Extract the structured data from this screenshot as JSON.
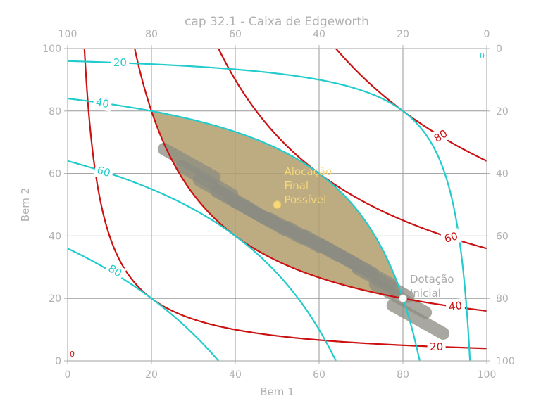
{
  "chart_data": {
    "type": "line",
    "title": "cap 32.1 - Caixa de Edgeworth",
    "xlabel": "Bem 1",
    "ylabel": "Bem 2",
    "xlim": [
      0,
      100
    ],
    "ylim": [
      0,
      100
    ],
    "grid": true,
    "x_ticks": [
      "0",
      "20",
      "40",
      "60",
      "80",
      "100"
    ],
    "y_ticks": [
      "0",
      "20",
      "40",
      "60",
      "80",
      "100"
    ],
    "top_ticks": [
      "100",
      "80",
      "60",
      "40",
      "20",
      "0"
    ],
    "right_ticks": [
      "100",
      "80",
      "60",
      "40",
      "20",
      "0"
    ],
    "origin_labels": {
      "bottom_left": "0",
      "top_right": "0"
    },
    "colors": {
      "consumer_a": "#cc1111",
      "consumer_b": "#22cccc",
      "lens_fill": "#b29d6c",
      "lens_edge": "#66dd66",
      "axes": "#b0b0b0",
      "grid": "#999999",
      "final_point": "#f6d77a",
      "endowment_point": "#ffffff"
    },
    "series": [
      {
        "name": "",
        "group": "consumer_a",
        "level": 20,
        "label": "20",
        "function": "x*y = 400",
        "x_range": [
          4,
          100
        ]
      },
      {
        "name": "",
        "group": "consumer_a",
        "level": 40,
        "label": "40",
        "function": "x*y = 1600",
        "x_range": [
          16,
          100
        ]
      },
      {
        "name": "",
        "group": "consumer_a",
        "level": 60,
        "label": "60",
        "function": "x*y = 3600",
        "x_range": [
          36,
          100
        ]
      },
      {
        "name": "",
        "group": "consumer_a",
        "level": 80,
        "label": "80",
        "function": "x*y = 6400",
        "x_range": [
          64,
          100
        ]
      },
      {
        "name": "",
        "group": "consumer_b",
        "level": 20,
        "label": "20",
        "function": "(100-x)*(100-y) = 400",
        "x_range": [
          0,
          96
        ]
      },
      {
        "name": "",
        "group": "consumer_b",
        "level": 40,
        "label": "40",
        "function": "(100-x)*(100-y) = 1600",
        "x_range": [
          0,
          84
        ]
      },
      {
        "name": "",
        "group": "consumer_b",
        "level": 60,
        "label": "60",
        "function": "(100-x)*(100-y) = 3600",
        "x_range": [
          0,
          64
        ]
      },
      {
        "name": "",
        "group": "consumer_b",
        "level": 80,
        "label": "80",
        "function": "(100-x)*(100-y) = 6400",
        "x_range": [
          0,
          36
        ]
      }
    ],
    "contour_labels": [
      {
        "group": "consumer_b",
        "text": "20",
        "x": 12.5,
        "y": 95.5,
        "angle": 0
      },
      {
        "group": "consumer_b",
        "text": "40",
        "x": 8.3,
        "y": 82.5,
        "angle": 10
      },
      {
        "group": "consumer_b",
        "text": "60",
        "x": 8.6,
        "y": 60.6,
        "angle": 16
      },
      {
        "group": "consumer_b",
        "text": "80",
        "x": 11.3,
        "y": 28.8,
        "angle": 32
      },
      {
        "group": "consumer_a",
        "text": "20",
        "x": 88.0,
        "y": 4.5,
        "angle": 0
      },
      {
        "group": "consumer_a",
        "text": "40",
        "x": 92.5,
        "y": 17.5,
        "angle": -8
      },
      {
        "group": "consumer_a",
        "text": "60",
        "x": 91.5,
        "y": 39.5,
        "angle": -16
      },
      {
        "group": "consumer_a",
        "text": "80",
        "x": 89.0,
        "y": 72.0,
        "angle": -32
      }
    ],
    "region": {
      "name": "",
      "between": [
        "consumer_a level 40",
        "consumer_b level 40"
      ],
      "x_range": [
        20,
        80
      ]
    },
    "points": [
      {
        "label": "Alocação Final Possível",
        "lines": [
          "Alocação",
          "Final",
          "Possível"
        ],
        "x": 50,
        "y": 50,
        "color": "#f6d77a"
      },
      {
        "label": "Dotação Inicial",
        "lines": [
          "Dotação",
          "Inicial"
        ],
        "x": 80,
        "y": 20,
        "color": "#ffffff"
      }
    ]
  }
}
